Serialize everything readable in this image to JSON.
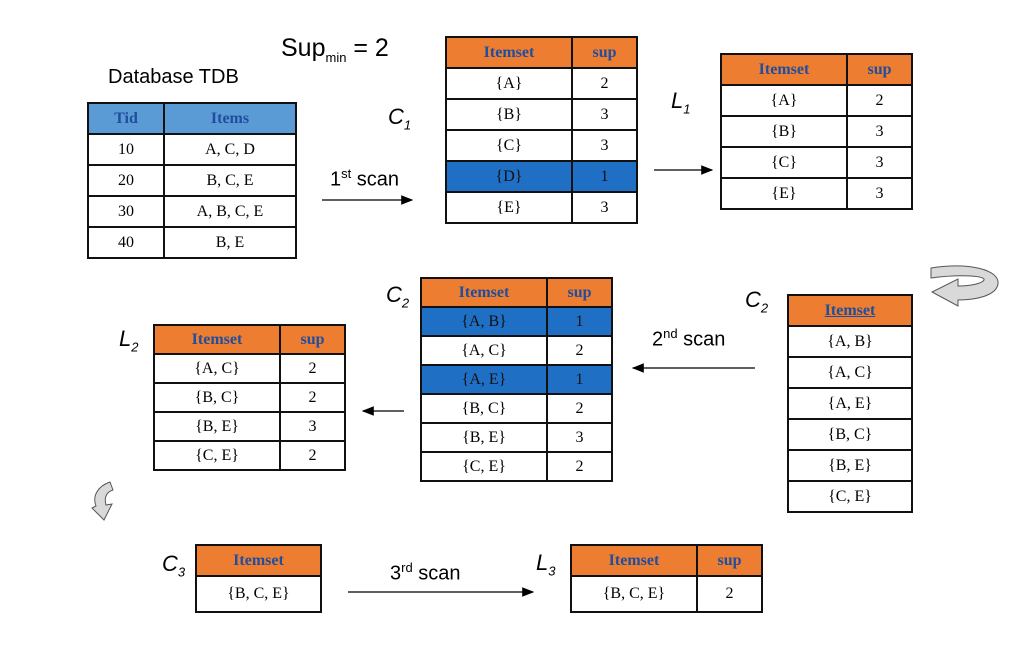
{
  "sup_min": {
    "base": "Sup",
    "sub": "min",
    "rest": " = 2"
  },
  "tdb": {
    "title": "Database TDB",
    "headers": [
      "Tid",
      "Items"
    ],
    "rows": [
      [
        "10",
        "A, C, D"
      ],
      [
        "20",
        "B, C, E"
      ],
      [
        "30",
        "A, B, C, E"
      ],
      [
        "40",
        "B, E"
      ]
    ]
  },
  "scan1": {
    "num": "1",
    "sup": "st",
    "text": " scan"
  },
  "scan2": {
    "num": "2",
    "sup": "nd",
    "text": " scan"
  },
  "scan3": {
    "num": "3",
    "sup": "rd",
    "text": " scan"
  },
  "c1": {
    "label": "C",
    "sub": "1",
    "headers": [
      "Itemset",
      "sup"
    ],
    "rows": [
      [
        "{A}",
        "2"
      ],
      [
        "{B}",
        "3"
      ],
      [
        "{C}",
        "3"
      ],
      [
        "{D}",
        "1"
      ],
      [
        "{E}",
        "3"
      ]
    ]
  },
  "l1": {
    "label": "L",
    "sub": "1",
    "headers": [
      "Itemset",
      "sup"
    ],
    "rows": [
      [
        "{A}",
        "2"
      ],
      [
        "{B}",
        "3"
      ],
      [
        "{C}",
        "3"
      ],
      [
        "{E}",
        "3"
      ]
    ]
  },
  "c2_right": {
    "label": "C",
    "sub": "2",
    "header": "Itemset",
    "rows": [
      "{A, B}",
      "{A, C}",
      "{A, E}",
      "{B, C}",
      "{B, E}",
      "{C, E}"
    ]
  },
  "c2_mid": {
    "label": "C",
    "sub": "2",
    "headers": [
      "Itemset",
      "sup"
    ],
    "rows": [
      [
        "{A, B}",
        "1"
      ],
      [
        "{A, C}",
        "2"
      ],
      [
        "{A, E}",
        "1"
      ],
      [
        "{B, C}",
        "2"
      ],
      [
        "{B, E}",
        "3"
      ],
      [
        "{C, E}",
        "2"
      ]
    ]
  },
  "l2": {
    "label": "L",
    "sub": "2",
    "headers": [
      "Itemset",
      "sup"
    ],
    "rows": [
      [
        "{A, C}",
        "2"
      ],
      [
        "{B, C}",
        "2"
      ],
      [
        "{B, E}",
        "3"
      ],
      [
        "{C, E}",
        "2"
      ]
    ]
  },
  "c3": {
    "label": "C",
    "sub": "3",
    "header": "Itemset",
    "rows": [
      "{B, C, E}"
    ]
  },
  "l3": {
    "label": "L",
    "sub": "3",
    "headers": [
      "Itemset",
      "sup"
    ],
    "rows": [
      [
        "{B, C, E}",
        "2"
      ]
    ]
  },
  "colors": {
    "header_orange": "#ed7d31",
    "header_blue": "#5b9bd5",
    "highlight": "#1f6fc5",
    "header_text": "#1f4e9e"
  }
}
